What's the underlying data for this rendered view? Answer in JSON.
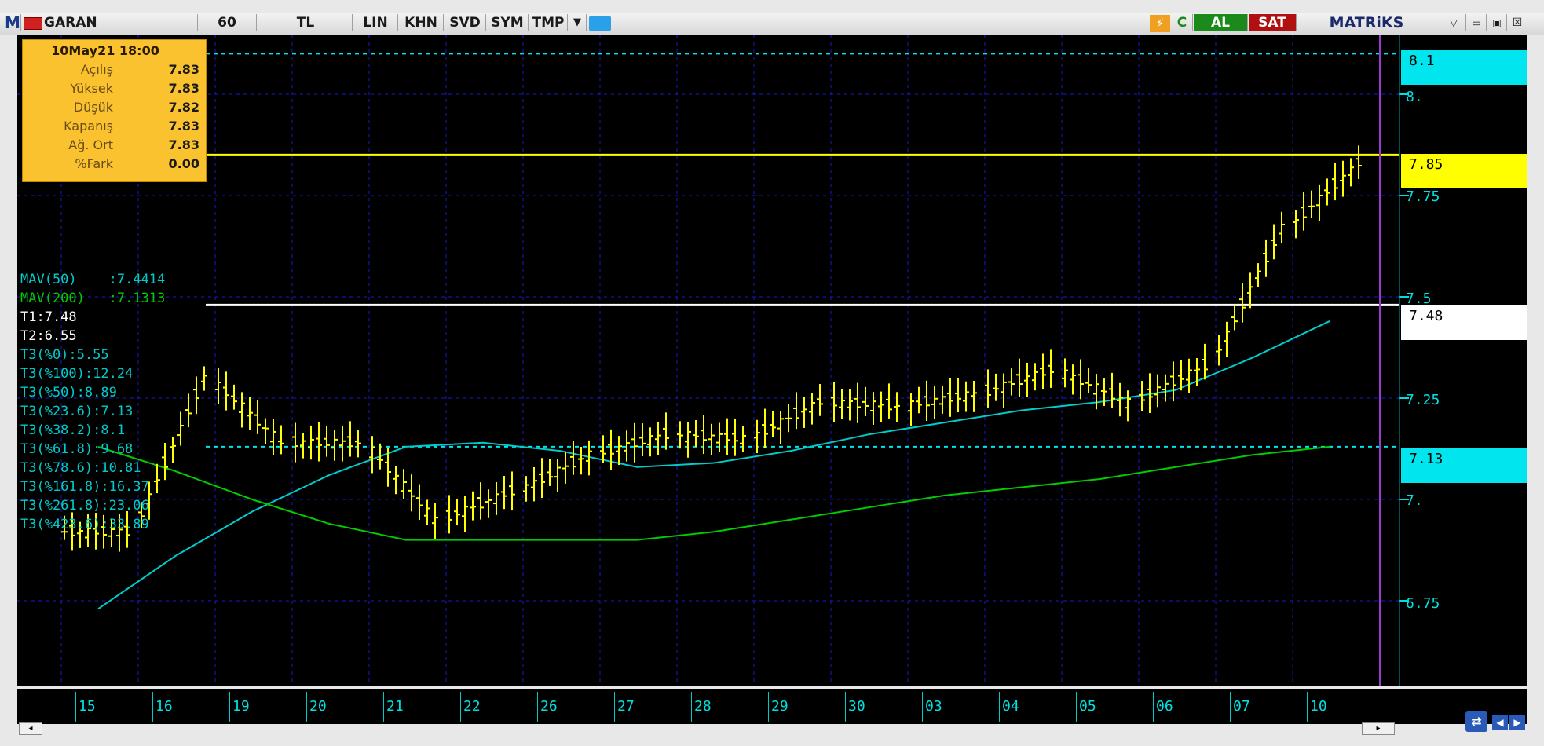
{
  "toolbar": {
    "logo": "M",
    "symbol": "GARAN",
    "period": "60",
    "currency": "TL",
    "buttons": [
      "LIN",
      "KHN",
      "SVD",
      "SYM",
      "TMP"
    ],
    "buy_label": "AL",
    "sell_label": "SAT",
    "brand": "MATRiKS",
    "refresh_label": "C"
  },
  "info_box": {
    "datetime": "10May21 18:00",
    "rows": [
      {
        "label": "Açılış",
        "value": "7.83"
      },
      {
        "label": "Yüksek",
        "value": "7.83"
      },
      {
        "label": "Düşük",
        "value": "7.82"
      },
      {
        "label": "Kapanış",
        "value": "7.83"
      },
      {
        "label": "Ağ. Ort",
        "value": "7.83"
      },
      {
        "label": "%Fark",
        "value": "0.00"
      }
    ]
  },
  "indicators": {
    "mav50": {
      "label": "MAV(50)",
      "value": ":7.4414",
      "color": "#00cccc"
    },
    "mav200": {
      "label": "MAV(200)",
      "value": ":7.1313",
      "color": "#00cc00"
    }
  },
  "levels": {
    "t1": "T1:7.48",
    "t2": "T2:6.55",
    "t3": [
      "T3(%0):5.55",
      "T3(%100):12.24",
      "T3(%50):8.89",
      "T3(%23.6):7.13",
      "T3(%38.2):8.1",
      "T3(%61.8):9.68",
      "T3(%78.6):10.81",
      "T3(%161.8):16.37",
      "T3(%261.8):23.06",
      "T3(%423.6):33.89"
    ]
  },
  "price_axis": {
    "labels": [
      "8.",
      "7.75",
      "7.5",
      "7.25",
      "7.",
      "6.75"
    ],
    "boxes": [
      {
        "value": "8.1",
        "bg": "#00e5ee",
        "fg": "#000000"
      },
      {
        "value": "7.85",
        "bg": "#ffff00",
        "fg": "#000000"
      },
      {
        "value": "7.48",
        "bg": "#ffffff",
        "fg": "#000000"
      },
      {
        "value": "7.13",
        "bg": "#00e5ee",
        "fg": "#000000"
      }
    ]
  },
  "date_axis": {
    "labels": [
      "15",
      "16",
      "19",
      "20",
      "21",
      "22",
      "26",
      "27",
      "28",
      "29",
      "30",
      "03",
      "04",
      "05",
      "06",
      "07",
      "10"
    ]
  },
  "chart_data": {
    "type": "line",
    "title": "",
    "xlabel": "",
    "ylabel": "",
    "ylim": [
      6.55,
      8.15
    ],
    "x": [
      "15",
      "16",
      "19",
      "20",
      "21",
      "22",
      "26",
      "27",
      "28",
      "29",
      "30",
      "03",
      "04",
      "05",
      "06",
      "07",
      "10"
    ],
    "series": [
      {
        "name": "GARAN",
        "color": "#ffff00",
        "values": [
          6.92,
          7.3,
          7.14,
          7.14,
          6.95,
          7.02,
          7.11,
          7.16,
          7.15,
          7.24,
          7.23,
          7.26,
          7.32,
          7.24,
          7.33,
          7.67,
          7.83
        ]
      },
      {
        "name": "MAV(50)",
        "color": "#00cccc",
        "values": [
          6.73,
          6.86,
          6.97,
          7.06,
          7.13,
          7.14,
          7.12,
          7.08,
          7.09,
          7.12,
          7.16,
          7.19,
          7.22,
          7.24,
          7.27,
          7.35,
          7.44
        ]
      },
      {
        "name": "MAV(200)",
        "color": "#00cc00",
        "values": [
          7.13,
          7.07,
          7.0,
          6.94,
          6.9,
          6.9,
          6.9,
          6.9,
          6.92,
          6.95,
          6.98,
          7.01,
          7.03,
          7.05,
          7.08,
          7.11,
          7.13
        ]
      }
    ],
    "horizontal_lines": [
      {
        "value": 8.1,
        "style": "dashed",
        "color": "#00e5ee"
      },
      {
        "value": 7.85,
        "style": "solid",
        "color": "#ffff00"
      },
      {
        "value": 7.48,
        "style": "solid",
        "color": "#ffffff"
      },
      {
        "value": 7.13,
        "style": "dashed",
        "color": "#00e5ee"
      }
    ],
    "grid": true
  }
}
